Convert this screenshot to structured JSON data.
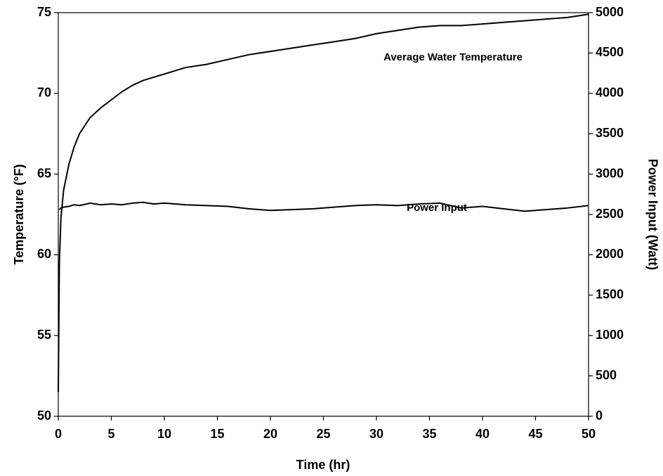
{
  "chart_data": {
    "type": "line",
    "x_label": "Time (hr)",
    "y_label": "Temperature (°F)",
    "y2_label": "Power Input (Watt)",
    "x": [
      0,
      0.1,
      0.25,
      0.5,
      1,
      1.5,
      2,
      3,
      4,
      5,
      6,
      7,
      8,
      9,
      10,
      12,
      14,
      16,
      18,
      20,
      22,
      24,
      26,
      28,
      30,
      32,
      34,
      36,
      38,
      40,
      42,
      44,
      46,
      48,
      50
    ],
    "series": [
      {
        "name": "Average Water Temperature",
        "color": "#000000",
        "values": [
          51.5,
          59.5,
          62.3,
          64.0,
          65.6,
          66.7,
          67.5,
          68.5,
          69.1,
          69.6,
          70.1,
          70.5,
          70.8,
          71.0,
          71.2,
          71.6,
          71.8,
          72.1,
          72.4,
          72.6,
          72.8,
          73.0,
          73.2,
          73.4,
          73.7,
          73.9,
          74.1,
          74.2,
          74.2,
          74.3,
          74.4,
          74.5,
          74.6,
          74.7,
          74.9
        ]
      },
      {
        "name": "Power Input",
        "color": "#000000",
        "axis": "y2",
        "values": [
          null,
          2560,
          2580,
          2590,
          2600,
          2620,
          2610,
          2640,
          2620,
          2630,
          2620,
          2640,
          2650,
          2630,
          2640,
          2620,
          2610,
          2600,
          2570,
          2550,
          2560,
          2570,
          2590,
          2610,
          2620,
          2610,
          2630,
          2640,
          2580,
          2600,
          2570,
          2540,
          2560,
          2580,
          2610
        ]
      }
    ],
    "xlim": [
      0,
      50
    ],
    "xticks": [
      0,
      5,
      10,
      15,
      20,
      25,
      30,
      35,
      40,
      45,
      50
    ],
    "ylim": [
      50,
      75
    ],
    "yticks": [
      50,
      55,
      60,
      65,
      70,
      75
    ],
    "y2lim": [
      0,
      5000
    ],
    "y2ticks": [
      0,
      500,
      1000,
      1500,
      2000,
      2500,
      3000,
      3500,
      4000,
      4500,
      5000
    ]
  }
}
